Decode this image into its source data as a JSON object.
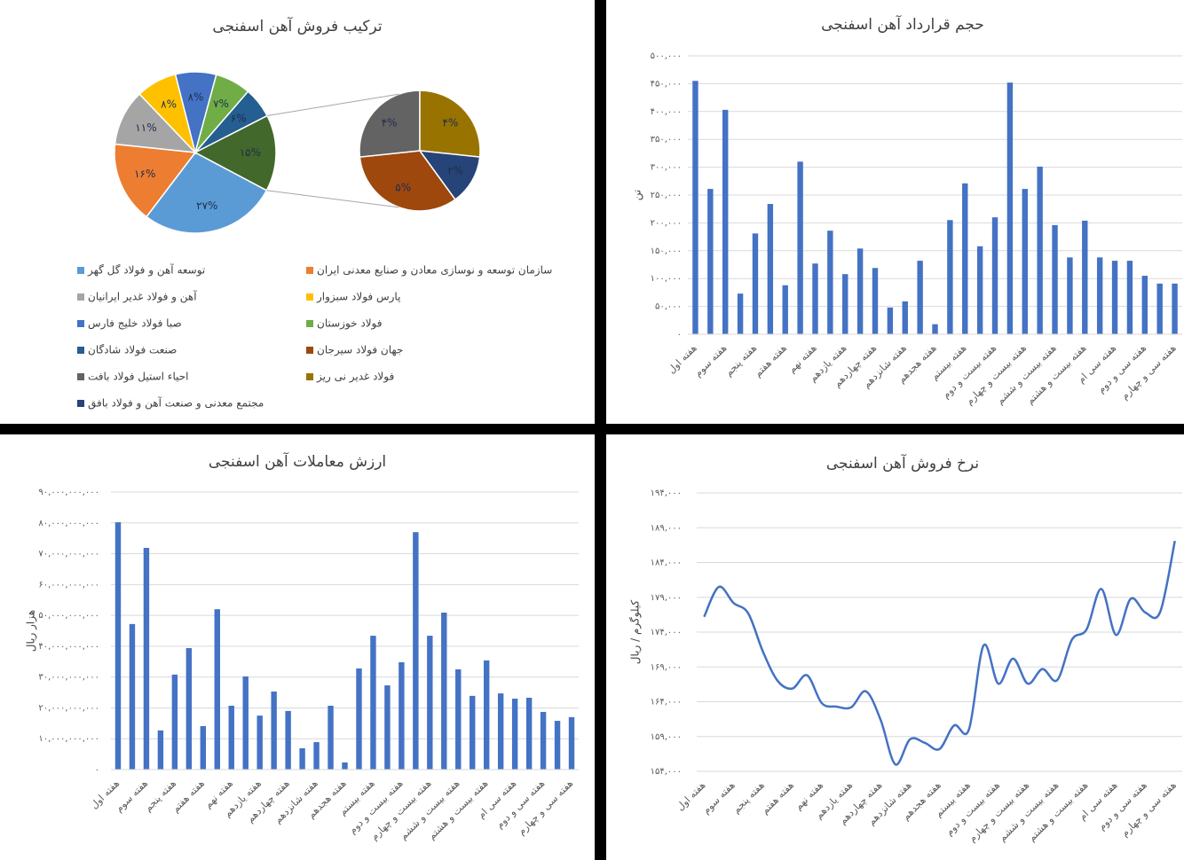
{
  "chart_data": [
    {
      "type": "pie-of-pie",
      "title": "ترکیب فروش آهن اسفنجی",
      "slices": [
        {
          "name": "توسعه آهن و فولاد گل گهر",
          "value": 27,
          "value_label": "۲۷%",
          "color": "#5b9bd5"
        },
        {
          "name": "سازمان توسعه و نوسازی معادن و صنایع معدنی ایران",
          "value": 16,
          "value_label": "۱۶%",
          "color": "#ed7d31"
        },
        {
          "name": "آهن و فولاد غدیر ایرانیان",
          "value": 11,
          "value_label": "۱۱%",
          "color": "#a5a5a5"
        },
        {
          "name": "پارس فولاد سبزوار",
          "value": 8,
          "value_label": "۸%",
          "color": "#ffc000"
        },
        {
          "name": "صبا فولاد خلیج فارس",
          "value": 8,
          "value_label": "۸%",
          "color": "#4472c4"
        },
        {
          "name": "فولاد خوزستان",
          "value": 7,
          "value_label": "۷%",
          "color": "#70ad47"
        },
        {
          "name": "صنعت فولاد شادگان",
          "value": 6,
          "value_label": "۶%",
          "color": "#255e91"
        },
        {
          "value": 15,
          "value_label": "۱۵%",
          "color": "#43682b"
        }
      ],
      "secondary_slices": [
        {
          "name": "جهان فولاد سیرجان",
          "value": 5,
          "value_label": "۵%",
          "color": "#9e480e"
        },
        {
          "name": "احیاء استیل فولاد بافت",
          "value": 4,
          "value_label": "۴%",
          "color": "#636363"
        },
        {
          "name": "فولاد غدیر نی ریز",
          "value": 4,
          "value_label": "۴%",
          "color": "#997300"
        },
        {
          "name": "مجتمع معدنی و صنعت آهن و فولاد بافق",
          "value": 2,
          "value_label": "۲%",
          "color": "#264478"
        }
      ]
    },
    {
      "type": "bar",
      "title": "حجم قرارداد آهن اسفنجی",
      "y_label": "تن",
      "color": "#4472c4",
      "grid": true,
      "categories": [
        "هفته اول",
        null,
        "هفته سوم",
        null,
        "هفته پنجم",
        null,
        "هفته هفتم",
        null,
        "هفته نهم",
        null,
        "هفته یازدهم",
        null,
        "هفته چهاردهم",
        null,
        "هفته شانزدهم",
        null,
        "هفته هجدهم",
        null,
        "هفته بیستم",
        null,
        "هفته بیست و دوم",
        null,
        "هفته بیست و چهارم",
        null,
        "هفته بیست و ششم",
        null,
        "هفته بیست و هشتم",
        null,
        "هفته سی ام",
        null,
        "هفته سی و دوم",
        null,
        "هفته سی و چهارم"
      ],
      "values": [
        455000,
        261000,
        403000,
        73000,
        181000,
        234000,
        88000,
        310000,
        127000,
        186000,
        108000,
        154000,
        119000,
        48000,
        59000,
        132000,
        18000,
        205000,
        271000,
        158000,
        210000,
        452000,
        261000,
        301000,
        196000,
        138000,
        204000,
        138000,
        132000,
        132000,
        105000,
        91000,
        91000
      ],
      "ylim": [
        0,
        500000
      ],
      "yticks": [
        {
          "value": 0,
          "label": "۰"
        },
        {
          "value": 50000,
          "label": "۵۰,۰۰۰"
        },
        {
          "value": 100000,
          "label": "۱۰۰,۰۰۰"
        },
        {
          "value": 150000,
          "label": "۱۵۰,۰۰۰"
        },
        {
          "value": 200000,
          "label": "۲۰۰,۰۰۰"
        },
        {
          "value": 250000,
          "label": "۲۵۰,۰۰۰"
        },
        {
          "value": 300000,
          "label": "۳۰۰,۰۰۰"
        },
        {
          "value": 350000,
          "label": "۳۵۰,۰۰۰"
        },
        {
          "value": 400000,
          "label": "۴۰۰,۰۰۰"
        },
        {
          "value": 450000,
          "label": "۴۵۰,۰۰۰"
        },
        {
          "value": 500000,
          "label": "۵۰۰,۰۰۰"
        }
      ]
    },
    {
      "type": "bar",
      "title": "ارزش معاملات آهن اسفنجی",
      "y_label": "هزار ریال",
      "color": "#4472c4",
      "grid": true,
      "categories": [
        "هفته اول",
        null,
        "هفته سوم",
        null,
        "هفته پنجم",
        null,
        "هفته هفتم",
        null,
        "هفته نهم",
        null,
        "هفته یازدهم",
        null,
        "هفته چهاردهم",
        null,
        "هفته شانزدهم",
        null,
        "هفته هجدهم",
        null,
        "هفته بیستم",
        null,
        "هفته بیست و دوم",
        null,
        "هفته بیست و چهارم",
        null,
        "هفته بیست و ششم",
        null,
        "هفته بیست و هشتم",
        null,
        "هفته سی ام",
        null,
        "هفته سی و دوم",
        null,
        "هفته سی و چهارم"
      ],
      "values": [
        80200000000,
        47200000000,
        71900000000,
        12700000000,
        30800000000,
        39400000000,
        14100000000,
        52000000000,
        20700000000,
        30200000000,
        17500000000,
        25300000000,
        19000000000,
        6900000000,
        8900000000,
        20700000000,
        2300000000,
        32800000000,
        43400000000,
        27300000000,
        34800000000,
        77000000000,
        43400000000,
        50900000000,
        32500000000,
        23900000000,
        35400000000,
        24700000000,
        23000000000,
        23300000000,
        18700000000,
        15800000000,
        17000000000
      ],
      "ylim": [
        0,
        90000000000
      ],
      "yticks": [
        {
          "value": 0,
          "label": "۰"
        },
        {
          "value": 10000000000,
          "label": "۱۰,۰۰۰,۰۰۰,۰۰۰"
        },
        {
          "value": 20000000000,
          "label": "۲۰,۰۰۰,۰۰۰,۰۰۰"
        },
        {
          "value": 30000000000,
          "label": "۳۰,۰۰۰,۰۰۰,۰۰۰"
        },
        {
          "value": 40000000000,
          "label": "۴۰,۰۰۰,۰۰۰,۰۰۰"
        },
        {
          "value": 50000000000,
          "label": "۵۰,۰۰۰,۰۰۰,۰۰۰"
        },
        {
          "value": 60000000000,
          "label": "۶۰,۰۰۰,۰۰۰,۰۰۰"
        },
        {
          "value": 70000000000,
          "label": "۷۰,۰۰۰,۰۰۰,۰۰۰"
        },
        {
          "value": 80000000000,
          "label": "۸۰,۰۰۰,۰۰۰,۰۰۰"
        },
        {
          "value": 90000000000,
          "label": "۹۰,۰۰۰,۰۰۰,۰۰۰"
        }
      ]
    },
    {
      "type": "line",
      "title": "نرخ فروش آهن اسفنجی",
      "y_label": "کیلوگرم / ریال",
      "color": "#4472c4",
      "grid": true,
      "categories": [
        "هفته اول",
        null,
        "هفته سوم",
        null,
        "هفته پنجم",
        null,
        "هفته هفتم",
        null,
        "هفته نهم",
        null,
        "هفته یازدهم",
        null,
        "هفته چهاردهم",
        null,
        "هفته شانزدهم",
        null,
        "هفته هجدهم",
        null,
        "هفته بیستم",
        null,
        "هفته بیست و دوم",
        null,
        "هفته بیست و چهارم",
        null,
        "هفته بیست و ششم",
        null,
        "هفته بیست و هشتم",
        null,
        "هفته سی ام",
        null,
        "هفته سی و دوم",
        null,
        "هفته سی و چهارم"
      ],
      "values": [
        176200,
        180500,
        178200,
        176700,
        171200,
        167000,
        165900,
        167800,
        163800,
        163300,
        163200,
        165500,
        161400,
        155000,
        158600,
        158100,
        157200,
        160600,
        160000,
        172100,
        166600,
        170200,
        166600,
        168700,
        167100,
        172900,
        174400,
        180200,
        173600,
        178800,
        176800,
        176900,
        187100
      ],
      "ylim": [
        154000,
        194000
      ],
      "yticks": [
        {
          "value": 154000,
          "label": "۱۵۴,۰۰۰"
        },
        {
          "value": 159000,
          "label": "۱۵۹,۰۰۰"
        },
        {
          "value": 164000,
          "label": "۱۶۴,۰۰۰"
        },
        {
          "value": 169000,
          "label": "۱۶۹,۰۰۰"
        },
        {
          "value": 174000,
          "label": "۱۷۴,۰۰۰"
        },
        {
          "value": 179000,
          "label": "۱۷۹,۰۰۰"
        },
        {
          "value": 184000,
          "label": "۱۸۴,۰۰۰"
        },
        {
          "value": 189000,
          "label": "۱۸۹,۰۰۰"
        },
        {
          "value": 194000,
          "label": "۱۹۴,۰۰۰"
        }
      ]
    }
  ]
}
